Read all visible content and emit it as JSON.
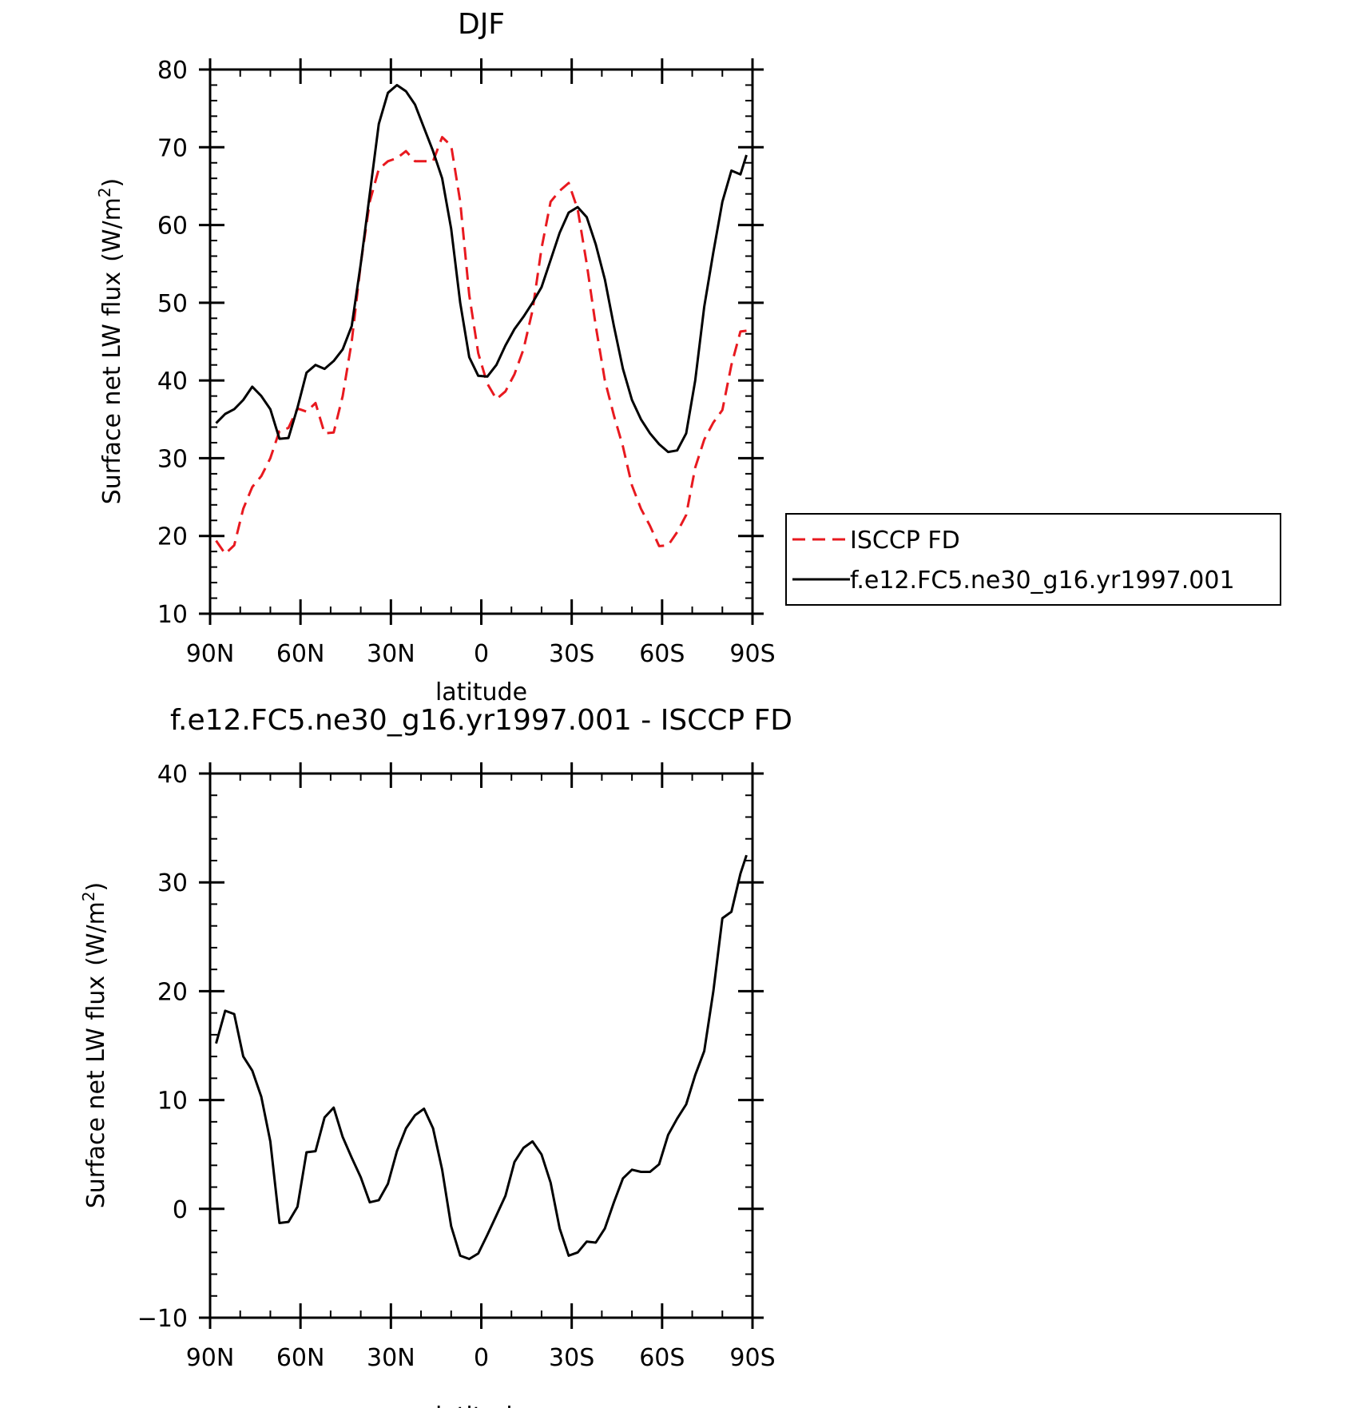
{
  "chart_data": [
    {
      "type": "line",
      "title": "DJF",
      "xlabel": "latitude",
      "ylabel": "Surface net LW flux",
      "ylabel_unit_prefix": "(W/m",
      "ylabel_unit_exp": "2",
      "ylabel_unit_suffix": ")",
      "xlim": [
        90,
        -90
      ],
      "ylim": [
        10,
        80
      ],
      "x_ticks": [
        {
          "value": 90,
          "label": "90N"
        },
        {
          "value": 60,
          "label": "60N"
        },
        {
          "value": 30,
          "label": "30N"
        },
        {
          "value": 0,
          "label": "0"
        },
        {
          "value": -30,
          "label": "30S"
        },
        {
          "value": -60,
          "label": "60S"
        },
        {
          "value": -90,
          "label": "90S"
        }
      ],
      "y_ticks": [
        {
          "value": 10,
          "label": "10"
        },
        {
          "value": 20,
          "label": "20"
        },
        {
          "value": 30,
          "label": "30"
        },
        {
          "value": 40,
          "label": "40"
        },
        {
          "value": 50,
          "label": "50"
        },
        {
          "value": 60,
          "label": "60"
        },
        {
          "value": 70,
          "label": "70"
        },
        {
          "value": 80,
          "label": "80"
        }
      ],
      "legend": "right",
      "series": [
        {
          "name": "ISCCP FD",
          "color": "#e8191f",
          "dash": "dashed",
          "x": [
            88,
            85,
            82,
            79,
            76,
            73,
            70,
            67,
            64,
            61,
            58,
            55,
            52,
            49,
            46,
            43,
            40,
            37,
            34,
            31,
            28,
            25,
            22,
            19,
            16,
            13,
            10,
            7,
            4,
            1,
            -2,
            -5,
            -8,
            -11,
            -14,
            -17,
            -20,
            -23,
            -26,
            -29,
            -32,
            -35,
            -38,
            -41,
            -44,
            -47,
            -50,
            -53,
            -56,
            -59,
            -62,
            -65,
            -68,
            -71,
            -74,
            -77,
            -80,
            -83,
            -86,
            -88
          ],
          "values": [
            19.4,
            17.7,
            18.8,
            23.5,
            26.3,
            27.7,
            30.0,
            33.5,
            33.9,
            36.4,
            36.0,
            37.1,
            33.2,
            33.3,
            38.0,
            45.0,
            55.0,
            63.0,
            67.2,
            68.2,
            68.6,
            69.5,
            68.2,
            68.2,
            68.2,
            71.3,
            70.2,
            63.0,
            51.0,
            43.5,
            39.6,
            37.6,
            38.6,
            40.8,
            44.0,
            49.0,
            57.0,
            63.0,
            64.4,
            65.4,
            62.0,
            55.0,
            47.0,
            40.0,
            35.5,
            31.5,
            26.5,
            23.5,
            21.3,
            18.7,
            18.8,
            20.5,
            22.7,
            28.8,
            32.4,
            34.6,
            36.2,
            42.0,
            46.3,
            46.4
          ]
        },
        {
          "name": "f.e12.FC5.ne30_g16.yr1997.001",
          "color": "#000000",
          "dash": "solid",
          "x": [
            88,
            85,
            82,
            79,
            76,
            73,
            70,
            67,
            64,
            61,
            58,
            55,
            52,
            49,
            46,
            43,
            40,
            37,
            34,
            31,
            28,
            25,
            22,
            19,
            16,
            13,
            10,
            7,
            4,
            1,
            -2,
            -5,
            -8,
            -11,
            -14,
            -17,
            -20,
            -23,
            -26,
            -29,
            -32,
            -35,
            -38,
            -41,
            -44,
            -47,
            -50,
            -53,
            -56,
            -59,
            -62,
            -65,
            -68,
            -71,
            -74,
            -77,
            -80,
            -83,
            -86,
            -88
          ],
          "values": [
            34.5,
            35.7,
            36.3,
            37.5,
            39.2,
            38.0,
            36.3,
            32.5,
            32.6,
            36.5,
            41.0,
            42.0,
            41.5,
            42.5,
            44.0,
            47.0,
            55.0,
            64.0,
            73.0,
            77.0,
            78.0,
            77.2,
            75.5,
            72.5,
            69.5,
            66.0,
            59.5,
            50.0,
            43.0,
            40.6,
            40.5,
            42.0,
            44.5,
            46.6,
            48.2,
            50.0,
            52.0,
            55.5,
            59.0,
            61.6,
            62.3,
            61.0,
            57.5,
            53.0,
            47.0,
            41.5,
            37.5,
            35.0,
            33.2,
            31.8,
            30.8,
            31.0,
            33.2,
            40.0,
            49.5,
            56.5,
            63.0,
            67.0,
            66.5,
            69.0
          ]
        }
      ]
    },
    {
      "type": "line",
      "title": "f.e12.FC5.ne30_g16.yr1997.001 - ISCCP FD",
      "xlabel": "latitude",
      "ylabel": "Surface net LW flux",
      "ylabel_unit_prefix": "(W/m",
      "ylabel_unit_exp": "2",
      "ylabel_unit_suffix": ")",
      "xlim": [
        90,
        -90
      ],
      "ylim": [
        -10,
        40
      ],
      "x_ticks": [
        {
          "value": 90,
          "label": "90N"
        },
        {
          "value": 60,
          "label": "60N"
        },
        {
          "value": 30,
          "label": "30N"
        },
        {
          "value": 0,
          "label": "0"
        },
        {
          "value": -30,
          "label": "30S"
        },
        {
          "value": -60,
          "label": "60S"
        },
        {
          "value": -90,
          "label": "90S"
        }
      ],
      "y_ticks": [
        {
          "value": -10,
          "label": "−10"
        },
        {
          "value": 0,
          "label": "0"
        },
        {
          "value": 10,
          "label": "10"
        },
        {
          "value": 20,
          "label": "20"
        },
        {
          "value": 30,
          "label": "30"
        },
        {
          "value": 40,
          "label": "40"
        }
      ],
      "series": [
        {
          "color": "#000000",
          "dash": "solid",
          "x": [
            88,
            85,
            82,
            79,
            76,
            73,
            70,
            67,
            64,
            61,
            58,
            55,
            52,
            49,
            46,
            43,
            40,
            37,
            34,
            31,
            28,
            25,
            22,
            19,
            16,
            13,
            10,
            7,
            4,
            1,
            -2,
            -5,
            -8,
            -11,
            -14,
            -17,
            -20,
            -23,
            -26,
            -29,
            -32,
            -35,
            -38,
            -41,
            -44,
            -47,
            -50,
            -53,
            -56,
            -59,
            -62,
            -65,
            -68,
            -71,
            -74,
            -77,
            -80,
            -83,
            -86,
            -88
          ],
          "values": [
            15.2,
            18.2,
            17.9,
            14.0,
            12.7,
            10.3,
            6.2,
            -1.3,
            -1.2,
            0.2,
            5.2,
            5.3,
            8.4,
            9.3,
            6.6,
            4.7,
            2.9,
            0.6,
            0.8,
            2.3,
            5.3,
            7.4,
            8.6,
            9.2,
            7.4,
            3.6,
            -1.6,
            -4.3,
            -4.6,
            -4.1,
            -2.4,
            -0.6,
            1.2,
            4.3,
            5.6,
            6.2,
            5.0,
            2.4,
            -1.8,
            -4.3,
            -4.0,
            -3.0,
            -3.1,
            -1.8,
            0.6,
            2.8,
            3.6,
            3.4,
            3.4,
            4.1,
            6.8,
            8.3,
            9.6,
            12.3,
            14.5,
            20.0,
            26.7,
            27.3,
            30.8,
            32.5
          ]
        }
      ]
    }
  ]
}
